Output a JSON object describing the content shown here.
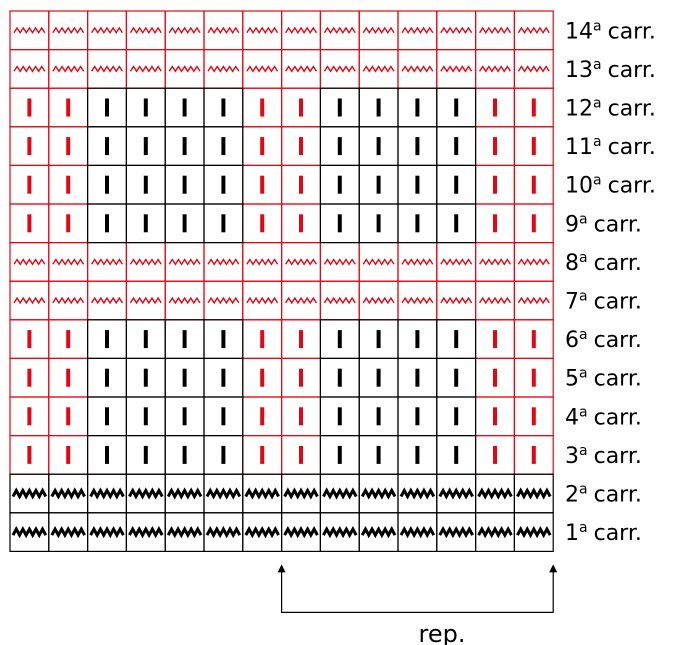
{
  "chart_data": {
    "type": "table",
    "columns": 14,
    "rows": [
      {
        "number": "14",
        "suffix": "a",
        "label": "carr.",
        "symbols": [
          "wave",
          "wave",
          "wave",
          "wave",
          "wave",
          "wave",
          "wave",
          "wave",
          "wave",
          "wave",
          "wave",
          "wave",
          "wave",
          "wave"
        ]
      },
      {
        "number": "13",
        "suffix": "a",
        "label": "carr.",
        "symbols": [
          "wave",
          "wave",
          "wave",
          "wave",
          "wave",
          "wave",
          "wave",
          "wave",
          "wave",
          "wave",
          "wave",
          "wave",
          "wave",
          "wave"
        ]
      },
      {
        "number": "12",
        "suffix": "a",
        "label": "carr.",
        "symbols": [
          "bar",
          "bar",
          "bar",
          "bar",
          "bar",
          "bar",
          "bar",
          "bar",
          "bar",
          "bar",
          "bar",
          "bar",
          "bar",
          "bar"
        ]
      },
      {
        "number": "11",
        "suffix": "a",
        "label": "carr.",
        "symbols": [
          "bar",
          "bar",
          "bar",
          "bar",
          "bar",
          "bar",
          "bar",
          "bar",
          "bar",
          "bar",
          "bar",
          "bar",
          "bar",
          "bar"
        ]
      },
      {
        "number": "10",
        "suffix": "a",
        "label": "carr.",
        "symbols": [
          "bar",
          "bar",
          "bar",
          "bar",
          "bar",
          "bar",
          "bar",
          "bar",
          "bar",
          "bar",
          "bar",
          "bar",
          "bar",
          "bar"
        ]
      },
      {
        "number": "9",
        "suffix": "a",
        "label": "carr.",
        "symbols": [
          "bar",
          "bar",
          "bar",
          "bar",
          "bar",
          "bar",
          "bar",
          "bar",
          "bar",
          "bar",
          "bar",
          "bar",
          "bar",
          "bar"
        ]
      },
      {
        "number": "8",
        "suffix": "a",
        "label": "carr.",
        "symbols": [
          "wave",
          "wave",
          "wave",
          "wave",
          "wave",
          "wave",
          "wave",
          "wave",
          "wave",
          "wave",
          "wave",
          "wave",
          "wave",
          "wave"
        ]
      },
      {
        "number": "7",
        "suffix": "a",
        "label": "carr.",
        "symbols": [
          "wave",
          "wave",
          "wave",
          "wave",
          "wave",
          "wave",
          "wave",
          "wave",
          "wave",
          "wave",
          "wave",
          "wave",
          "wave",
          "wave"
        ]
      },
      {
        "number": "6",
        "suffix": "a",
        "label": "carr.",
        "symbols": [
          "bar",
          "bar",
          "bar",
          "bar",
          "bar",
          "bar",
          "bar",
          "bar",
          "bar",
          "bar",
          "bar",
          "bar",
          "bar",
          "bar"
        ]
      },
      {
        "number": "5",
        "suffix": "a",
        "label": "carr.",
        "symbols": [
          "bar",
          "bar",
          "bar",
          "bar",
          "bar",
          "bar",
          "bar",
          "bar",
          "bar",
          "bar",
          "bar",
          "bar",
          "bar",
          "bar"
        ]
      },
      {
        "number": "4",
        "suffix": "a",
        "label": "carr.",
        "symbols": [
          "bar",
          "bar",
          "bar",
          "bar",
          "bar",
          "bar",
          "bar",
          "bar",
          "bar",
          "bar",
          "bar",
          "bar",
          "bar",
          "bar"
        ]
      },
      {
        "number": "3",
        "suffix": "a",
        "label": "carr.",
        "symbols": [
          "bar",
          "bar",
          "bar",
          "bar",
          "bar",
          "bar",
          "bar",
          "bar",
          "bar",
          "bar",
          "bar",
          "bar",
          "bar",
          "bar"
        ]
      },
      {
        "number": "2",
        "suffix": "a",
        "label": "carr.",
        "symbols": [
          "zigzag",
          "zigzag",
          "zigzag",
          "zigzag",
          "zigzag",
          "zigzag",
          "zigzag",
          "zigzag",
          "zigzag",
          "zigzag",
          "zigzag",
          "zigzag",
          "zigzag",
          "zigzag"
        ]
      },
      {
        "number": "1",
        "suffix": "a",
        "label": "carr.",
        "symbols": [
          "zigzag",
          "zigzag",
          "zigzag",
          "zigzag",
          "zigzag",
          "zigzag",
          "zigzag",
          "zigzag",
          "zigzag",
          "zigzag",
          "zigzag",
          "zigzag",
          "zigzag",
          "zigzag"
        ]
      }
    ],
    "cell_colors": [
      [
        "red",
        "red",
        "red",
        "red",
        "red",
        "red",
        "red",
        "red",
        "red",
        "red",
        "red",
        "red",
        "red",
        "red"
      ],
      [
        "red",
        "red",
        "red",
        "red",
        "red",
        "red",
        "red",
        "red",
        "red",
        "red",
        "red",
        "red",
        "red",
        "red"
      ],
      [
        "red",
        "red",
        "black",
        "black",
        "black",
        "black",
        "red",
        "red",
        "black",
        "black",
        "black",
        "black",
        "red",
        "red"
      ],
      [
        "red",
        "red",
        "black",
        "black",
        "black",
        "black",
        "red",
        "red",
        "black",
        "black",
        "black",
        "black",
        "red",
        "red"
      ],
      [
        "red",
        "red",
        "black",
        "black",
        "black",
        "black",
        "red",
        "red",
        "black",
        "black",
        "black",
        "black",
        "red",
        "red"
      ],
      [
        "red",
        "red",
        "black",
        "black",
        "black",
        "black",
        "red",
        "red",
        "black",
        "black",
        "black",
        "black",
        "red",
        "red"
      ],
      [
        "red",
        "red",
        "red",
        "red",
        "red",
        "red",
        "red",
        "red",
        "red",
        "red",
        "red",
        "red",
        "red",
        "red"
      ],
      [
        "red",
        "red",
        "red",
        "red",
        "red",
        "red",
        "red",
        "red",
        "red",
        "red",
        "red",
        "red",
        "red",
        "red"
      ],
      [
        "red",
        "red",
        "black",
        "black",
        "black",
        "black",
        "red",
        "red",
        "black",
        "black",
        "black",
        "black",
        "red",
        "red"
      ],
      [
        "red",
        "red",
        "black",
        "black",
        "black",
        "black",
        "red",
        "red",
        "black",
        "black",
        "black",
        "black",
        "red",
        "red"
      ],
      [
        "red",
        "red",
        "black",
        "black",
        "black",
        "black",
        "red",
        "red",
        "black",
        "black",
        "black",
        "black",
        "red",
        "red"
      ],
      [
        "red",
        "red",
        "black",
        "black",
        "black",
        "black",
        "red",
        "red",
        "black",
        "black",
        "black",
        "black",
        "red",
        "red"
      ],
      [
        "black",
        "black",
        "black",
        "black",
        "black",
        "black",
        "black",
        "black",
        "black",
        "black",
        "black",
        "black",
        "black",
        "black"
      ],
      [
        "black",
        "black",
        "black",
        "black",
        "black",
        "black",
        "black",
        "black",
        "black",
        "black",
        "black",
        "black",
        "black",
        "black"
      ]
    ],
    "repeat": {
      "label": "rep.",
      "from_column": 8,
      "to_column": 14
    },
    "colors": {
      "red": "#e30613",
      "black": "#000000"
    }
  }
}
